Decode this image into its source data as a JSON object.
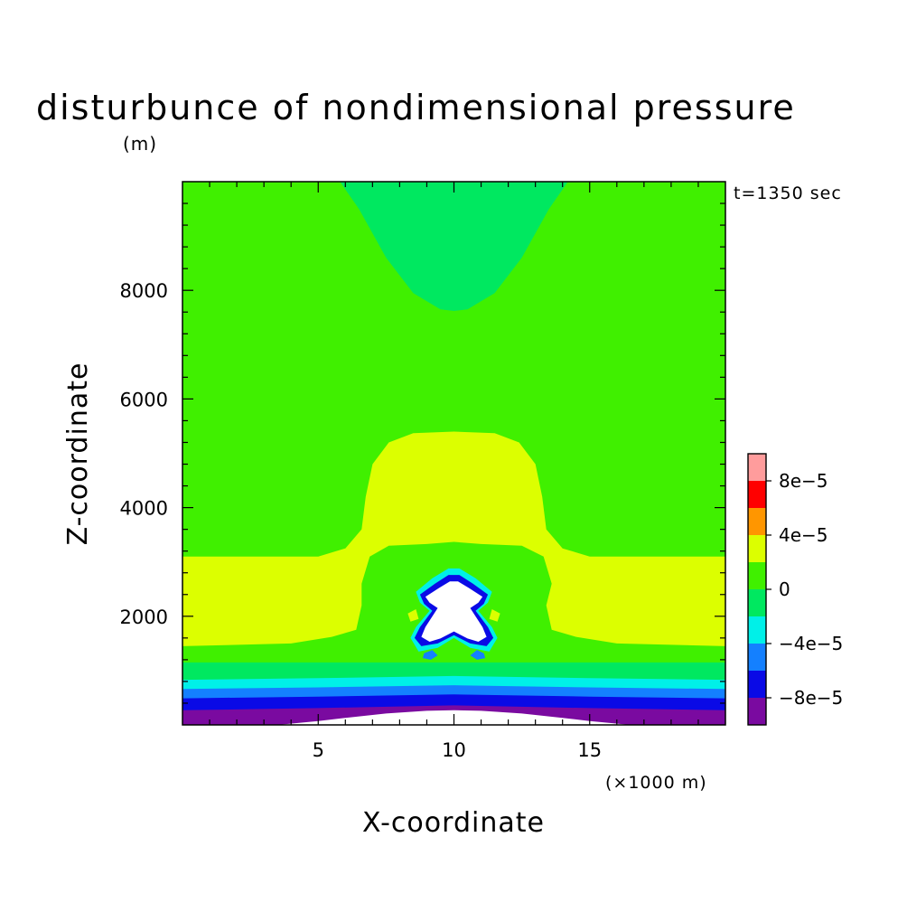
{
  "chart_data": {
    "type": "heatmap",
    "title": "disturbunce of nondimensional pressure",
    "title_unit": "(m)",
    "time_label": "t=1350 sec",
    "xlabel": "X-coordinate",
    "xunit": "(×1000 m)",
    "ylabel": "Z-coordinate",
    "xlim": [
      0,
      20
    ],
    "ylim": [
      0,
      10000
    ],
    "x_ticks": [
      {
        "value": 5,
        "label": "5"
      },
      {
        "value": 10,
        "label": "10"
      },
      {
        "value": 15,
        "label": "15"
      }
    ],
    "y_ticks": [
      {
        "value": 2000,
        "label": "2000"
      },
      {
        "value": 4000,
        "label": "4000"
      },
      {
        "value": 6000,
        "label": "6000"
      },
      {
        "value": 8000,
        "label": "8000"
      }
    ],
    "colorbar": {
      "levels": [
        -0.0001,
        -8e-05,
        -6e-05,
        -4e-05,
        -2e-05,
        0,
        2e-05,
        4e-05,
        6e-05,
        8e-05,
        0.0001
      ],
      "colors": [
        "#7a0aa0",
        "#0a0ae6",
        "#1480ff",
        "#00f0e8",
        "#00e860",
        "#40f000",
        "#dcff00",
        "#ff9600",
        "#ff0000",
        "#ff9c9c"
      ],
      "tick_labels": [
        {
          "value": -8e-05,
          "label": "−8e−5"
        },
        {
          "value": -4e-05,
          "label": "−4e−5"
        },
        {
          "value": 0,
          "label": "0"
        },
        {
          "value": 4e-05,
          "label": "4e−5"
        },
        {
          "value": 8e-05,
          "label": "8e−5"
        }
      ]
    },
    "background_color": "#40f000",
    "regions": [
      {
        "name": "upper-negative-dome",
        "level_color": "#00e860",
        "points": [
          [
            5.8,
            10000
          ],
          [
            6.5,
            9500
          ],
          [
            7.5,
            8600
          ],
          [
            8.5,
            7950
          ],
          [
            9.5,
            7650
          ],
          [
            10,
            7620
          ],
          [
            10.5,
            7650
          ],
          [
            11.5,
            7950
          ],
          [
            12.5,
            8600
          ],
          [
            13.5,
            9500
          ],
          [
            14.2,
            10000
          ]
        ]
      },
      {
        "name": "positive-band-and-dome",
        "level_color": "#dcff00",
        "points": [
          [
            0,
            3100
          ],
          [
            5,
            3100
          ],
          [
            6,
            3250
          ],
          [
            6.6,
            3600
          ],
          [
            6.75,
            4200
          ],
          [
            7,
            4800
          ],
          [
            7.6,
            5200
          ],
          [
            8.5,
            5370
          ],
          [
            10,
            5400
          ],
          [
            11.5,
            5370
          ],
          [
            12.4,
            5200
          ],
          [
            13,
            4800
          ],
          [
            13.25,
            4200
          ],
          [
            13.4,
            3600
          ],
          [
            14,
            3250
          ],
          [
            15,
            3100
          ],
          [
            20,
            3100
          ],
          [
            20,
            1450
          ],
          [
            16,
            1500
          ],
          [
            14.5,
            1620
          ],
          [
            13.6,
            1750
          ],
          [
            13.4,
            2200
          ],
          [
            13.6,
            2600
          ],
          [
            13.3,
            3100
          ],
          [
            12.5,
            3300
          ],
          [
            11,
            3330
          ],
          [
            10,
            3370
          ],
          [
            9,
            3330
          ],
          [
            7.6,
            3300
          ],
          [
            6.9,
            3100
          ],
          [
            6.6,
            2600
          ],
          [
            6.6,
            2200
          ],
          [
            6.4,
            1750
          ],
          [
            5.5,
            1620
          ],
          [
            4,
            1500
          ],
          [
            0,
            1450
          ]
        ]
      },
      {
        "name": "low-level-negative-band",
        "level_color": "#00e860",
        "points": [
          [
            0,
            1150
          ],
          [
            20,
            1150
          ],
          [
            20,
            0
          ],
          [
            0,
            0
          ]
        ]
      },
      {
        "name": "cyan-band",
        "level_color": "#00f0e8",
        "points": [
          [
            0,
            830
          ],
          [
            5,
            860
          ],
          [
            10,
            900
          ],
          [
            15,
            860
          ],
          [
            20,
            830
          ],
          [
            20,
            0
          ],
          [
            0,
            0
          ]
        ]
      },
      {
        "name": "mid-blue-band",
        "level_color": "#1480ff",
        "points": [
          [
            0,
            660
          ],
          [
            5,
            690
          ],
          [
            10,
            730
          ],
          [
            15,
            690
          ],
          [
            20,
            660
          ],
          [
            20,
            0
          ],
          [
            0,
            0
          ]
        ]
      },
      {
        "name": "blue-band",
        "level_color": "#0a0ae6",
        "points": [
          [
            0,
            490
          ],
          [
            5,
            520
          ],
          [
            10,
            560
          ],
          [
            15,
            520
          ],
          [
            20,
            490
          ],
          [
            20,
            0
          ],
          [
            0,
            0
          ]
        ]
      },
      {
        "name": "purple-band",
        "level_color": "#7a0aa0",
        "points": [
          [
            0,
            270
          ],
          [
            5,
            310
          ],
          [
            10,
            360
          ],
          [
            15,
            310
          ],
          [
            20,
            270
          ],
          [
            20,
            0
          ],
          [
            0,
            0
          ]
        ]
      },
      {
        "name": "surface-outside-range",
        "level_color": "#ffffff",
        "points": [
          [
            3.5,
            0
          ],
          [
            5,
            70
          ],
          [
            6,
            130
          ],
          [
            7.5,
            210
          ],
          [
            9,
            260
          ],
          [
            10,
            270
          ],
          [
            11,
            260
          ],
          [
            12.5,
            210
          ],
          [
            14,
            130
          ],
          [
            15,
            70
          ],
          [
            16.5,
            0
          ]
        ]
      },
      {
        "name": "cell-halo-cyan",
        "level_color": "#00f0e8",
        "points": [
          [
            9.2,
            2700
          ],
          [
            9.8,
            2880
          ],
          [
            10.2,
            2880
          ],
          [
            10.8,
            2700
          ],
          [
            11.4,
            2450
          ],
          [
            11.25,
            2250
          ],
          [
            10.9,
            2100
          ],
          [
            11.4,
            1800
          ],
          [
            11.6,
            1600
          ],
          [
            11.3,
            1350
          ],
          [
            10.6,
            1420
          ],
          [
            10,
            1600
          ],
          [
            9.4,
            1420
          ],
          [
            8.7,
            1350
          ],
          [
            8.4,
            1600
          ],
          [
            8.6,
            1800
          ],
          [
            9.1,
            2100
          ],
          [
            8.75,
            2250
          ],
          [
            8.6,
            2450
          ]
        ]
      },
      {
        "name": "cell-blue",
        "level_color": "#0a0ae6",
        "points": [
          [
            9.3,
            2600
          ],
          [
            9.8,
            2760
          ],
          [
            10.2,
            2760
          ],
          [
            10.7,
            2600
          ],
          [
            11.25,
            2400
          ],
          [
            11.1,
            2230
          ],
          [
            10.8,
            2100
          ],
          [
            11.25,
            1800
          ],
          [
            11.45,
            1600
          ],
          [
            11.2,
            1450
          ],
          [
            10.6,
            1500
          ],
          [
            10,
            1650
          ],
          [
            9.4,
            1500
          ],
          [
            8.8,
            1450
          ],
          [
            8.55,
            1600
          ],
          [
            8.75,
            1800
          ],
          [
            9.2,
            2100
          ],
          [
            8.9,
            2230
          ],
          [
            8.75,
            2400
          ]
        ]
      },
      {
        "name": "cell-core-outside-range",
        "level_color": "#ffffff",
        "points": [
          [
            9.45,
            2520
          ],
          [
            9.85,
            2640
          ],
          [
            10.15,
            2640
          ],
          [
            10.55,
            2520
          ],
          [
            11.05,
            2360
          ],
          [
            10.9,
            2250
          ],
          [
            10.6,
            2150
          ],
          [
            11.05,
            1800
          ],
          [
            11.2,
            1620
          ],
          [
            10.9,
            1530
          ],
          [
            10.5,
            1590
          ],
          [
            10,
            1720
          ],
          [
            9.5,
            1590
          ],
          [
            9.1,
            1530
          ],
          [
            8.8,
            1620
          ],
          [
            8.95,
            1800
          ],
          [
            9.4,
            2150
          ],
          [
            9.1,
            2250
          ],
          [
            8.95,
            2360
          ]
        ]
      },
      {
        "name": "cell-left-blob",
        "level_color": "#1480ff",
        "points": [
          [
            8.9,
            1320
          ],
          [
            9.2,
            1380
          ],
          [
            9.4,
            1280
          ],
          [
            9.15,
            1200
          ],
          [
            8.85,
            1230
          ]
        ]
      },
      {
        "name": "cell-right-blob",
        "level_color": "#1480ff",
        "points": [
          [
            10.6,
            1280
          ],
          [
            10.85,
            1380
          ],
          [
            11.1,
            1320
          ],
          [
            11.15,
            1230
          ],
          [
            10.85,
            1200
          ]
        ]
      },
      {
        "name": "cell-side-yellow-left",
        "level_color": "#dcff00",
        "points": [
          [
            8.3,
            2050
          ],
          [
            8.6,
            2130
          ],
          [
            8.7,
            1950
          ],
          [
            8.4,
            1900
          ]
        ]
      },
      {
        "name": "cell-side-yellow-right",
        "level_color": "#dcff00",
        "points": [
          [
            11.3,
            1950
          ],
          [
            11.4,
            2130
          ],
          [
            11.7,
            2050
          ],
          [
            11.6,
            1900
          ]
        ]
      }
    ]
  }
}
